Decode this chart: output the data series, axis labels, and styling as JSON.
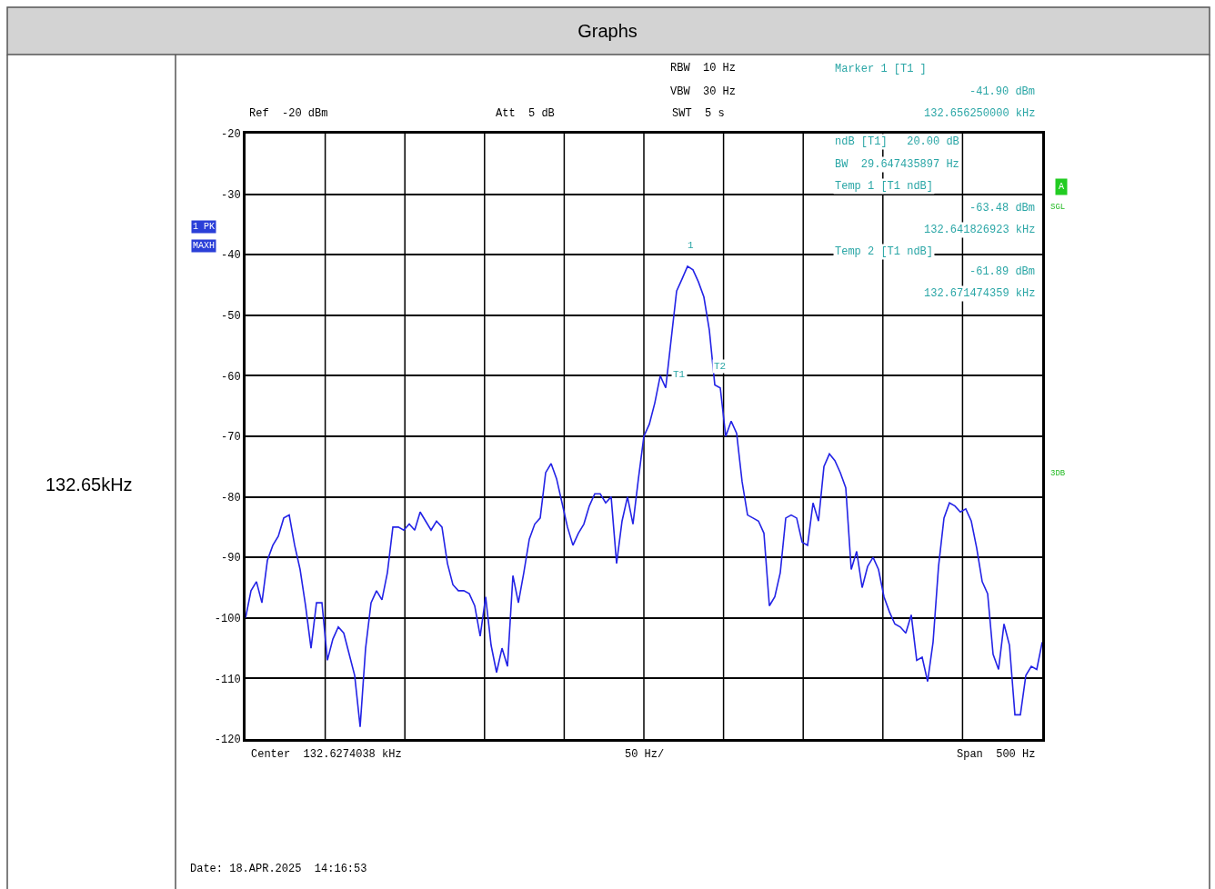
{
  "chart_data": {
    "type": "line",
    "title": "Graphs",
    "categories": [
      null,
      null,
      null,
      null,
      null,
      null,
      null,
      null,
      null,
      null,
      null,
      null,
      null,
      null,
      null,
      null,
      null,
      null,
      null,
      null,
      null,
      null,
      null,
      null,
      null,
      null,
      null,
      null,
      null,
      null,
      null,
      null,
      null,
      null,
      null,
      null,
      null,
      null,
      null,
      null,
      null,
      null,
      null,
      null,
      null,
      null,
      null,
      null,
      null,
      null,
      null,
      null,
      null,
      null,
      null,
      null,
      null,
      null,
      null,
      null,
      null,
      null,
      null,
      null,
      null,
      null,
      null,
      null,
      null,
      null,
      null,
      null,
      null,
      null,
      null,
      null,
      null,
      null,
      null,
      null,
      null,
      null,
      null,
      null,
      null,
      null,
      null,
      null,
      null,
      null,
      null,
      null,
      null,
      null,
      null,
      null,
      null,
      null,
      null,
      null,
      null,
      null,
      null,
      null,
      null,
      null,
      null,
      null,
      null,
      null,
      null,
      null,
      null,
      null,
      null,
      null,
      null,
      null,
      null,
      null,
      null,
      null,
      null,
      null,
      null,
      null,
      null,
      null,
      null,
      null,
      null,
      null,
      null,
      null,
      null,
      null,
      null,
      null,
      null,
      null,
      null,
      null,
      null,
      null,
      null,
      null,
      null
    ],
    "ylim": [
      -120,
      -20
    ],
    "yticks": [
      -20,
      -30,
      -40,
      -50,
      -60,
      -70,
      -80,
      -90,
      -100,
      -110,
      -120
    ],
    "grid": true,
    "tick_labels": "y",
    "marker": "none",
    "line_style": "solid",
    "series": [
      {
        "color": "#2323e6",
        "values": [
          -100,
          -95.5,
          -94,
          -97.5,
          -90.5,
          -88,
          -86.5,
          -83.5,
          -83,
          -88,
          -92,
          -98,
          -105,
          -97.5,
          -97.5,
          -107,
          -103.5,
          -101.5,
          -102.5,
          -106,
          -109.5,
          -118,
          -105,
          -97.5,
          -95.5,
          -97,
          -92.5,
          -85,
          -85,
          -85.5,
          -84.5,
          -85.5,
          -82.5,
          -84,
          -85.5,
          -84,
          -85,
          -91,
          -94.5,
          -95.5,
          -95.5,
          -96,
          -98,
          -103,
          -96.5,
          -104.5,
          -109,
          -105,
          -108,
          -93,
          -97.5,
          -92.5,
          -87,
          -84.5,
          -83.5,
          -76,
          -74.5,
          -77,
          -81,
          -85,
          -88,
          -86,
          -84.5,
          -81.5,
          -79.5,
          -79.5,
          -81,
          -80,
          -91,
          -84,
          -80,
          -84.5,
          -77,
          -70,
          -68,
          -64.5,
          -60,
          -62,
          -54,
          -46,
          -44,
          -41.9,
          -42.5,
          -44.5,
          -47,
          -52.5,
          -61.5,
          -62,
          -70,
          -67.5,
          -69.5,
          -77.5,
          -83,
          -83.5,
          -84,
          -86,
          -98,
          -96.5,
          -92.5,
          -83.5,
          -83,
          -83.5,
          -87.5,
          -88,
          -81,
          -84,
          -75,
          -72.9,
          -74,
          -76,
          -78.5,
          -92,
          -89,
          -95,
          -91.5,
          -90,
          -92,
          -96.5,
          -99,
          -101,
          -101.5,
          -102.5,
          -99.5,
          -107,
          -106.5,
          -110.5,
          -104,
          -91.5,
          -83.5,
          -81,
          -81.5,
          -82.5,
          -82,
          -84,
          -88.5,
          -94,
          -96,
          -106,
          -108.5,
          -101,
          -104.5,
          -116,
          -116,
          -109.5,
          -108,
          -108.5,
          -104
        ]
      }
    ],
    "annotations": [
      "Ref  -20 dBm",
      "Att  5 dB",
      "RBW  10 Hz",
      "VBW  30 Hz",
      "SWT  5 s",
      "Marker 1 [T1 ]",
      "-41.90 dBm",
      "132.656250000 kHz",
      "ndB [T1]   20.00 dB",
      "BW  29.647435897 Hz",
      "Temp 1 [T1 ndB]",
      "-63.48 dBm",
      "132.641826923 kHz",
      "Temp 2 [T1 ndB]",
      "-61.89 dBm",
      "132.671474359 kHz",
      "1 PK",
      "MAXH",
      "A",
      "SGL",
      "3DB",
      "Center  132.6274038 kHz",
      "50 Hz/",
      "Span  500 Hz",
      "Date: 18.APR.2025  14:16:53",
      "132.65kHz",
      "1",
      "T1",
      "T2"
    ]
  }
}
